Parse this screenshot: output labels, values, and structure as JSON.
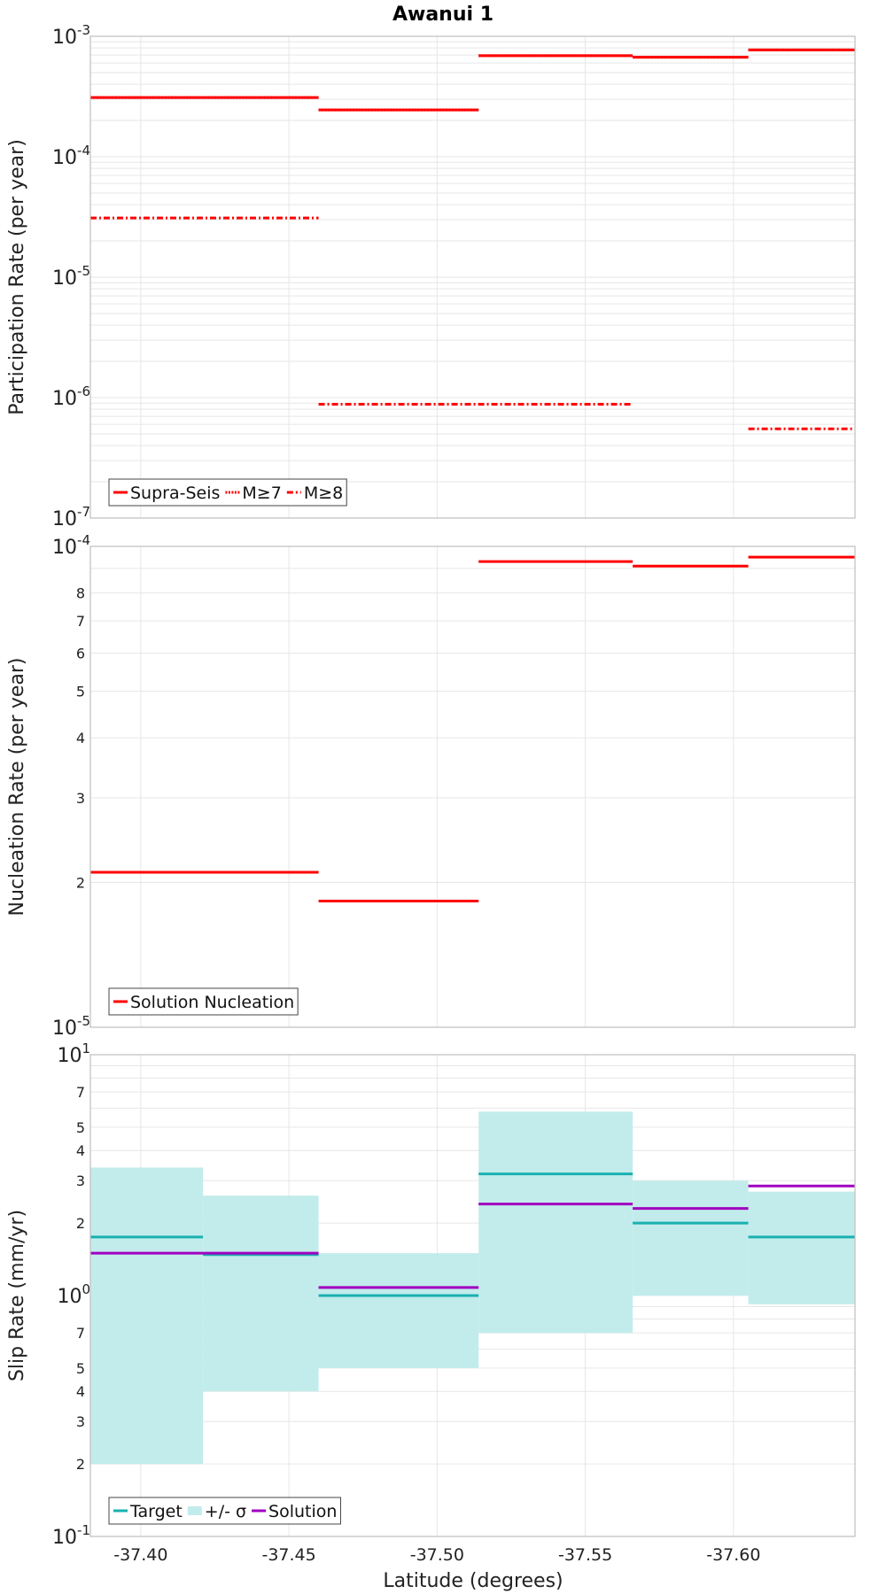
{
  "figure": {
    "title": "Awanui 1",
    "xlabel": "Latitude (degrees)",
    "xlim": [
      -37.383,
      -37.641
    ],
    "xticks": [
      "-37.40",
      "-37.45",
      "-37.50",
      "-37.55",
      "-37.60"
    ],
    "xtick_values": [
      -37.4,
      -37.45,
      -37.5,
      -37.55,
      -37.6
    ],
    "colors": {
      "red": "#ff0000",
      "teal": "#1ab0b0",
      "band": "#c2ecec",
      "purple": "#a000c0",
      "grid": "#e6e6e6",
      "frame": "#bfbfbf"
    }
  },
  "chart_data": [
    {
      "type": "line",
      "ylabel": "Participation Rate (per year)",
      "yscale": "log",
      "ylim": [
        1e-07,
        0.001
      ],
      "yticks": [
        {
          "v": 0.001,
          "base": "10",
          "exp": "-3"
        },
        {
          "v": 0.0001,
          "base": "10",
          "exp": "-4"
        },
        {
          "v": 1e-05,
          "base": "10",
          "exp": "-5"
        },
        {
          "v": 1e-06,
          "base": "10",
          "exp": "-6"
        },
        {
          "v": 1e-07,
          "base": "10",
          "exp": "-7"
        }
      ],
      "legend": [
        "Supra-Seis",
        "M≥7",
        "M≥8"
      ],
      "series": [
        {
          "name": "Supra-Seis",
          "style": "solid",
          "segments": [
            [
              -37.383,
              -37.46,
              0.00031
            ],
            [
              -37.46,
              -37.514,
              0.000245
            ],
            [
              -37.514,
              -37.566,
              0.00069
            ],
            [
              -37.566,
              -37.605,
              0.00067
            ],
            [
              -37.605,
              -37.641,
              0.00077
            ]
          ]
        },
        {
          "name": "M≥7",
          "style": "dotted",
          "segments": [
            [
              -37.383,
              -37.46,
              0.00031
            ],
            [
              -37.46,
              -37.514,
              0.000245
            ],
            [
              -37.514,
              -37.566,
              0.00069
            ],
            [
              -37.566,
              -37.605,
              0.00067
            ],
            [
              -37.605,
              -37.641,
              0.00077
            ]
          ]
        },
        {
          "name": "M≥8",
          "style": "dashdot",
          "segments": [
            [
              -37.383,
              -37.46,
              3.1e-05
            ],
            [
              -37.46,
              -37.566,
              8.8e-07
            ],
            [
              -37.605,
              -37.641,
              5.5e-07
            ]
          ]
        }
      ]
    },
    {
      "type": "line",
      "ylabel": "Nucleation Rate (per year)",
      "yscale": "log",
      "ylim": [
        1e-05,
        0.0001
      ],
      "yticks": [
        {
          "v": 0.0001,
          "base": "10",
          "exp": "-4"
        },
        {
          "v": 8e-05,
          "label": "8"
        },
        {
          "v": 7e-05,
          "label": "7"
        },
        {
          "v": 6e-05,
          "label": "6"
        },
        {
          "v": 5e-05,
          "label": "5"
        },
        {
          "v": 4e-05,
          "label": "4"
        },
        {
          "v": 3e-05,
          "label": "3"
        },
        {
          "v": 2e-05,
          "label": "2"
        },
        {
          "v": 1e-05,
          "base": "10",
          "exp": "-5"
        }
      ],
      "legend": [
        "Solution Nucleation"
      ],
      "series": [
        {
          "name": "Solution Nucleation",
          "style": "solid",
          "segments": [
            [
              -37.383,
              -37.46,
              2.1e-05
            ],
            [
              -37.46,
              -37.514,
              1.83e-05
            ],
            [
              -37.514,
              -37.566,
              9.3e-05
            ],
            [
              -37.566,
              -37.605,
              9.1e-05
            ],
            [
              -37.605,
              -37.641,
              9.5e-05
            ]
          ]
        }
      ]
    },
    {
      "type": "line",
      "ylabel": "Slip Rate (mm/yr)",
      "yscale": "log",
      "ylim": [
        0.1,
        10
      ],
      "yticks": [
        {
          "v": 10,
          "base": "10",
          "exp": "1"
        },
        {
          "v": 7,
          "label": "7"
        },
        {
          "v": 5,
          "label": "5"
        },
        {
          "v": 4,
          "label": "4"
        },
        {
          "v": 3,
          "label": "3"
        },
        {
          "v": 2,
          "label": "2"
        },
        {
          "v": 1,
          "base": "10",
          "exp": "0"
        },
        {
          "v": 0.7,
          "label": "7"
        },
        {
          "v": 0.5,
          "label": "5"
        },
        {
          "v": 0.4,
          "label": "4"
        },
        {
          "v": 0.3,
          "label": "3"
        },
        {
          "v": 0.2,
          "label": "2"
        },
        {
          "v": 0.1,
          "base": "10",
          "exp": "-1"
        }
      ],
      "legend": [
        "Target",
        "+/- σ",
        "Solution"
      ],
      "bands": [
        [
          -37.383,
          -37.421,
          0.2,
          3.4
        ],
        [
          -37.421,
          -37.46,
          0.4,
          2.6
        ],
        [
          -37.46,
          -37.514,
          0.5,
          1.5
        ],
        [
          -37.514,
          -37.566,
          0.7,
          5.8
        ],
        [
          -37.566,
          -37.605,
          1.0,
          3.0
        ],
        [
          -37.605,
          -37.641,
          0.92,
          2.7
        ]
      ],
      "series": [
        {
          "name": "Target",
          "style": "solid",
          "segments": [
            [
              -37.383,
              -37.421,
              1.75
            ],
            [
              -37.421,
              -37.46,
              1.48
            ],
            [
              -37.46,
              -37.514,
              1.0
            ],
            [
              -37.514,
              -37.566,
              3.2
            ],
            [
              -37.566,
              -37.605,
              2.0
            ],
            [
              -37.605,
              -37.641,
              1.75
            ]
          ]
        },
        {
          "name": "Solution",
          "style": "solid",
          "segments": [
            [
              -37.383,
              -37.46,
              1.5
            ],
            [
              -37.46,
              -37.514,
              1.08
            ],
            [
              -37.514,
              -37.566,
              2.4
            ],
            [
              -37.566,
              -37.605,
              2.3
            ],
            [
              -37.605,
              -37.641,
              2.85
            ]
          ]
        }
      ]
    }
  ]
}
